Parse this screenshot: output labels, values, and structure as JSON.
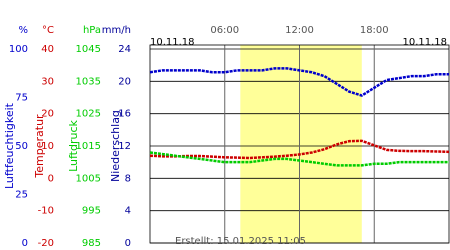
{
  "chart_data": {
    "type": "line",
    "date_left": "10.11.18",
    "date_right": "10.11.18",
    "created": "Erstellt: 15.01.2025 11:05",
    "xlim": [
      0,
      24
    ],
    "xticks": [
      {
        "value": 6,
        "label": "06:00"
      },
      {
        "value": 12,
        "label": "12:00"
      },
      {
        "value": 18,
        "label": "18:00"
      }
    ],
    "daylight": [
      7.25,
      17
    ],
    "axes": [
      {
        "unit": "%",
        "label": "Luftfeuchtigkeit",
        "color": "#0000cc",
        "lim": [
          0,
          100
        ],
        "ticks": [
          0,
          25,
          50,
          75,
          100
        ]
      },
      {
        "unit": "°C",
        "label": "Temperatur",
        "color": "#cc0000",
        "lim": [
          -20,
          40
        ],
        "ticks": [
          -20,
          -10,
          0,
          10,
          20,
          30,
          40
        ]
      },
      {
        "unit": "hPa",
        "label": "Luftdruck",
        "color": "#00cc00",
        "lim": [
          985,
          1045
        ],
        "ticks": [
          985,
          995,
          1005,
          1015,
          1025,
          1035,
          1045
        ]
      },
      {
        "unit": "mm/h",
        "label": "Niederschlag",
        "color": "#000099",
        "lim": [
          0,
          24
        ],
        "ticks": [
          0,
          4,
          8,
          12,
          16,
          20,
          24
        ]
      }
    ],
    "x": [
      0,
      1,
      2,
      3,
      4,
      5,
      6,
      7,
      8,
      9,
      10,
      11,
      12,
      13,
      14,
      15,
      16,
      17,
      18,
      19,
      20,
      21,
      22,
      23,
      24
    ],
    "series": [
      {
        "axis": 0,
        "color": "#0000cc",
        "values": [
          88,
          89,
          89,
          89,
          89,
          88,
          88,
          89,
          89,
          89,
          90,
          90,
          89,
          88,
          86,
          82,
          78,
          76,
          80,
          84,
          85,
          86,
          86,
          87,
          87
        ]
      },
      {
        "axis": 1,
        "color": "#cc0000",
        "values": [
          7.0,
          6.8,
          6.8,
          6.9,
          6.9,
          6.7,
          6.5,
          6.4,
          6.3,
          6.5,
          6.7,
          7.0,
          7.4,
          8,
          9,
          10.5,
          11.5,
          11.6,
          10.2,
          8.8,
          8.5,
          8.4,
          8.4,
          8.3,
          8.2
        ]
      },
      {
        "axis": 2,
        "color": "#00cc00",
        "values": [
          1013,
          1012.5,
          1012,
          1011.5,
          1011,
          1010.5,
          1010,
          1010,
          1010,
          1010.5,
          1011,
          1011,
          1010.5,
          1010,
          1009.5,
          1009,
          1009,
          1009,
          1009.5,
          1009.5,
          1010,
          1010,
          1010,
          1010,
          1010
        ]
      }
    ]
  }
}
